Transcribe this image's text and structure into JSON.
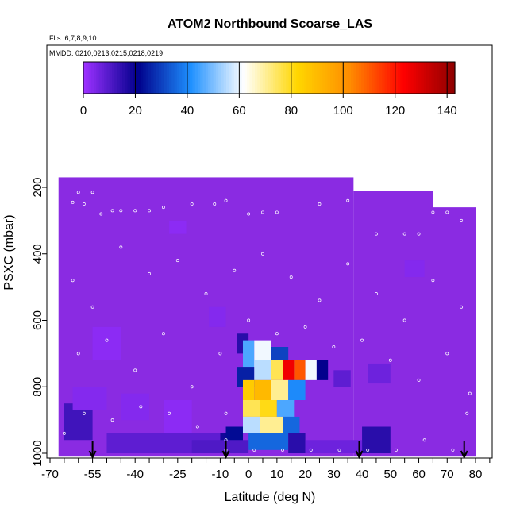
{
  "chart_data": {
    "type": "heatmap",
    "title": "ATOM2 Northbound Scoarse_LAS",
    "flights_label": "Flts: 6,7,8,9,10",
    "dates_label": "MMDD: 0210,0213,0215,0218,0219",
    "xlabel": "Latitude (deg N)",
    "ylabel": "PSXC (mbar)",
    "xlim": [
      -70,
      85
    ],
    "ylim": [
      1000,
      100
    ],
    "y_reversed": true,
    "x_ticks": [
      "-70",
      "-55",
      "-40",
      "-25",
      "-10",
      "0",
      "10",
      "20",
      "30",
      "40",
      "50",
      "60",
      "70",
      "80"
    ],
    "y_ticks": [
      "200",
      "400",
      "600",
      "800",
      "1000"
    ],
    "colorbar": {
      "range": [
        0,
        143
      ],
      "ticks": [
        "0",
        "20",
        "40",
        "60",
        "80",
        "100",
        "120",
        "140"
      ],
      "palette": [
        "#9b30ff",
        "#00008b",
        "#1e90ff",
        "#ffffff",
        "#ffd700",
        "#ff8c00",
        "#ff0000",
        "#8b0000"
      ]
    },
    "background_color": "#8a2be2",
    "coverage": [
      {
        "lat_min": -67,
        "lat_max": 37,
        "p_min": 170,
        "p_max": 1010
      },
      {
        "lat_min": 37,
        "lat_max": 65,
        "p_min": 210,
        "p_max": 1010
      },
      {
        "lat_min": 65,
        "lat_max": 80,
        "p_min": 260,
        "p_max": 1010
      }
    ],
    "cells": [
      {
        "lat": [
          -65,
          -55
        ],
        "p": [
          850,
          960
        ],
        "v": 12
      },
      {
        "lat": [
          -62,
          -50
        ],
        "p": [
          800,
          870
        ],
        "v": 3
      },
      {
        "lat": [
          -55,
          -45
        ],
        "p": [
          620,
          720
        ],
        "v": 2
      },
      {
        "lat": [
          -45,
          -35
        ],
        "p": [
          820,
          900
        ],
        "v": 3
      },
      {
        "lat": [
          -50,
          -10
        ],
        "p": [
          940,
          1000
        ],
        "v": 8
      },
      {
        "lat": [
          -30,
          -20
        ],
        "p": [
          840,
          940
        ],
        "v": 2
      },
      {
        "lat": [
          -28,
          -22
        ],
        "p": [
          300,
          340
        ],
        "v": 2
      },
      {
        "lat": [
          -14,
          -8
        ],
        "p": [
          560,
          620
        ],
        "v": 3
      },
      {
        "lat": [
          -10,
          -4
        ],
        "p": [
          940,
          1000
        ],
        "v": 18
      },
      {
        "lat": [
          -8,
          -2
        ],
        "p": [
          920,
          1000
        ],
        "v": 22
      },
      {
        "lat": [
          -4,
          0
        ],
        "p": [
          640,
          700
        ],
        "v": 15
      },
      {
        "lat": [
          -2,
          2
        ],
        "p": [
          660,
          740
        ],
        "v": 45
      },
      {
        "lat": [
          2,
          8
        ],
        "p": [
          660,
          740
        ],
        "v": 60
      },
      {
        "lat": [
          8,
          14
        ],
        "p": [
          680,
          740
        ],
        "v": 30
      },
      {
        "lat": [
          -4,
          2
        ],
        "p": [
          740,
          800
        ],
        "v": 25
      },
      {
        "lat": [
          2,
          8
        ],
        "p": [
          720,
          780
        ],
        "v": 55
      },
      {
        "lat": [
          8,
          12
        ],
        "p": [
          720,
          780
        ],
        "v": 75
      },
      {
        "lat": [
          12,
          16
        ],
        "p": [
          720,
          780
        ],
        "v": 125
      },
      {
        "lat": [
          16,
          20
        ],
        "p": [
          720,
          780
        ],
        "v": 110
      },
      {
        "lat": [
          20,
          24
        ],
        "p": [
          720,
          780
        ],
        "v": 60
      },
      {
        "lat": [
          24,
          28
        ],
        "p": [
          720,
          780
        ],
        "v": 20
      },
      {
        "lat": [
          -2,
          2
        ],
        "p": [
          780,
          840
        ],
        "v": 85
      },
      {
        "lat": [
          2,
          8
        ],
        "p": [
          780,
          840
        ],
        "v": 90
      },
      {
        "lat": [
          8,
          14
        ],
        "p": [
          780,
          840
        ],
        "v": 70
      },
      {
        "lat": [
          14,
          20
        ],
        "p": [
          780,
          840
        ],
        "v": 40
      },
      {
        "lat": [
          -2,
          4
        ],
        "p": [
          840,
          890
        ],
        "v": 75
      },
      {
        "lat": [
          4,
          10
        ],
        "p": [
          840,
          890
        ],
        "v": 80
      },
      {
        "lat": [
          10,
          16
        ],
        "p": [
          840,
          890
        ],
        "v": 45
      },
      {
        "lat": [
          -2,
          4
        ],
        "p": [
          890,
          940
        ],
        "v": 55
      },
      {
        "lat": [
          4,
          12
        ],
        "p": [
          890,
          940
        ],
        "v": 70
      },
      {
        "lat": [
          12,
          18
        ],
        "p": [
          890,
          940
        ],
        "v": 35
      },
      {
        "lat": [
          0,
          14
        ],
        "p": [
          940,
          990
        ],
        "v": 35
      },
      {
        "lat": [
          14,
          20
        ],
        "p": [
          940,
          1000
        ],
        "v": 15
      },
      {
        "lat": [
          30,
          36
        ],
        "p": [
          750,
          800
        ],
        "v": 8
      },
      {
        "lat": [
          42,
          50
        ],
        "p": [
          730,
          790
        ],
        "v": 6
      },
      {
        "lat": [
          40,
          50
        ],
        "p": [
          920,
          1000
        ],
        "v": 15
      },
      {
        "lat": [
          55,
          62
        ],
        "p": [
          420,
          470
        ],
        "v": 3
      },
      {
        "lat": [
          -20,
          0
        ],
        "p": [
          960,
          1000
        ],
        "v": 10
      },
      {
        "lat": [
          20,
          40
        ],
        "p": [
          960,
          1000
        ],
        "v": 6
      }
    ],
    "flight_points": [
      [
        -62,
        245
      ],
      [
        -60,
        215
      ],
      [
        -58,
        250
      ],
      [
        -55,
        215
      ],
      [
        -52,
        280
      ],
      [
        -48,
        270
      ],
      [
        -45,
        270
      ],
      [
        -40,
        270
      ],
      [
        -35,
        270
      ],
      [
        -30,
        260
      ],
      [
        -20,
        250
      ],
      [
        -12,
        250
      ],
      [
        -8,
        240
      ],
      [
        0,
        280
      ],
      [
        5,
        275
      ],
      [
        10,
        275
      ],
      [
        25,
        250
      ],
      [
        35,
        240
      ],
      [
        45,
        340
      ],
      [
        55,
        340
      ],
      [
        60,
        340
      ],
      [
        65,
        275
      ],
      [
        70,
        275
      ],
      [
        75,
        300
      ],
      [
        -62,
        480
      ],
      [
        -55,
        560
      ],
      [
        -45,
        380
      ],
      [
        -35,
        460
      ],
      [
        -25,
        420
      ],
      [
        -15,
        520
      ],
      [
        -5,
        450
      ],
      [
        5,
        400
      ],
      [
        15,
        470
      ],
      [
        25,
        540
      ],
      [
        35,
        430
      ],
      [
        45,
        520
      ],
      [
        55,
        600
      ],
      [
        65,
        480
      ],
      [
        75,
        560
      ],
      [
        -60,
        700
      ],
      [
        -50,
        660
      ],
      [
        -40,
        750
      ],
      [
        -30,
        640
      ],
      [
        -20,
        800
      ],
      [
        -10,
        700
      ],
      [
        0,
        600
      ],
      [
        10,
        640
      ],
      [
        20,
        620
      ],
      [
        30,
        680
      ],
      [
        40,
        660
      ],
      [
        50,
        720
      ],
      [
        60,
        780
      ],
      [
        70,
        700
      ],
      [
        78,
        820
      ],
      [
        -58,
        880
      ],
      [
        -48,
        900
      ],
      [
        -38,
        860
      ],
      [
        -28,
        880
      ],
      [
        -18,
        920
      ],
      [
        -8,
        880
      ],
      [
        -8,
        960
      ],
      [
        -8,
        990
      ],
      [
        2,
        990
      ],
      [
        12,
        990
      ],
      [
        22,
        990
      ],
      [
        32,
        990
      ],
      [
        42,
        990
      ],
      [
        52,
        990
      ],
      [
        62,
        960
      ],
      [
        72,
        990
      ],
      [
        77,
        880
      ],
      [
        -65,
        940
      ]
    ],
    "arrows_lat": [
      -55,
      -8,
      39,
      76
    ]
  }
}
